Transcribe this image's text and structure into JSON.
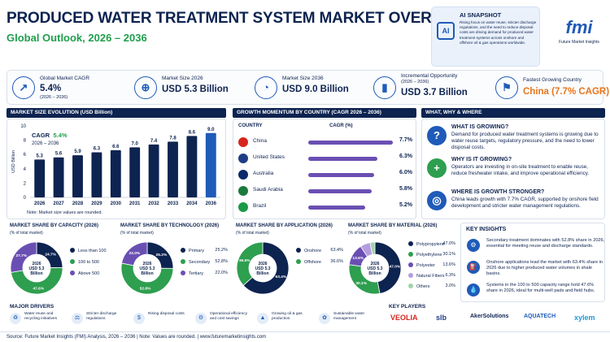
{
  "header": {
    "title": "PRODUCED WATER TREATMENT SYSTEM MARKET OVERVIEW",
    "subtitle": "Global Outlook, 2026 – 2036"
  },
  "ai_snapshot": {
    "heading": "AI SNAPSHOT",
    "icon_label": "AI",
    "text": "Rising focus on water reuse, stricter discharge regulations, and the need to reduce disposal costs are driving demand for produced water treatment systems across onshore and offshore oil & gas operations worldwide."
  },
  "logo": {
    "mark": "fmi",
    "name": "Future Market Insights"
  },
  "kpis": [
    {
      "label": "Global Market CAGR",
      "sub": "(2026 – 2036)",
      "value": "5.4%",
      "icon": "trend-up-icon"
    },
    {
      "label": "Market Size 2026",
      "sub": "",
      "value": "USD 5.3 Billion",
      "icon": "globe-icon"
    },
    {
      "label": "Market Size 2036",
      "sub": "",
      "value": "USD 9.0 Billion",
      "icon": "pie-icon"
    },
    {
      "label": "Incremental Opportunity",
      "sub": "(2026 – 2036)",
      "value": "USD 3.7 Billion",
      "icon": "bar-growth-icon"
    },
    {
      "label": "Fastest Growing Country",
      "sub": "",
      "value": "China (7.7% CAGR)",
      "icon": "flag-icon"
    }
  ],
  "evolution": {
    "heading": "MARKET SIZE EVOLUTION (USD Billion)",
    "cagr_label": "CAGR",
    "cagr_value": "5.4%",
    "cagr_period": "2026 – 2036",
    "ylabel": "USD Billion",
    "note": "Note: Market size values are rounded.",
    "y_ticks": [
      "0",
      "2",
      "4",
      "6",
      "8",
      "10"
    ]
  },
  "growth": {
    "heading": "GROWTH MOMENTUM BY COUNTRY (CAGR 2026 – 2036)",
    "col_country": "COUNTRY",
    "col_cagr": "CAGR (%)",
    "rows": [
      {
        "country": "China",
        "value": 7.7,
        "label": "7.7%",
        "flag": "#d7261e"
      },
      {
        "country": "United States",
        "value": 6.3,
        "label": "6.3%",
        "flag": "#1f3c88"
      },
      {
        "country": "Australia",
        "value": 6.0,
        "label": "6.0%",
        "flag": "#0b2b6b"
      },
      {
        "country": "Saudi Arabia",
        "value": 5.8,
        "label": "5.8%",
        "flag": "#1a7a3c"
      },
      {
        "country": "Brazil",
        "value": 5.2,
        "label": "5.2%",
        "flag": "#1a9a46"
      }
    ]
  },
  "www": {
    "heading": "WHAT, WHY & WHERE",
    "items": [
      {
        "q": "WHAT IS GROWING?",
        "a": "Demand for produced water treatment systems is growing due to water reuse targets, regulatory pressure, and the need to lower disposal costs.",
        "icon": "?"
      },
      {
        "q": "WHY IS IT GROWING?",
        "a": "Operators are investing in on-site treatment to enable reuse, reduce freshwater intake, and improve operational efficiency.",
        "icon": "+"
      },
      {
        "q": "WHERE IS GROWTH STRONGER?",
        "a": "China leads growth with 7.7% CAGR, supported by onshore field development and stricter water management regulations.",
        "icon": "◎"
      }
    ]
  },
  "shares": [
    {
      "title": "MARKET SHARE BY CAPACITY (2026)",
      "sub": "(% of total market)",
      "center": "2026",
      "center2": "USD 5.3",
      "center3": "Billion",
      "slices": [
        {
          "name": "Less than 100",
          "value": 24.7,
          "label": "24.7%",
          "color": "#0d2350"
        },
        {
          "name": "100 to 500",
          "value": 47.6,
          "label": "47.6%",
          "color": "#2e9e4f"
        },
        {
          "name": "Above 500",
          "value": 27.7,
          "label": "27.7%",
          "color": "#6a4fb3"
        }
      ],
      "show_values": false
    },
    {
      "title": "MARKET SHARE BY TECHNOLOGY (2026)",
      "sub": "(% of total market)",
      "center": "2026",
      "center2": "USD 5.3",
      "center3": "Billion",
      "slices": [
        {
          "name": "Primary",
          "value": 25.2,
          "label": "25.2%",
          "color": "#0d2350"
        },
        {
          "name": "Secondary",
          "value": 52.8,
          "label": "52.8%",
          "color": "#2e9e4f"
        },
        {
          "name": "Tertiary",
          "value": 22.0,
          "label": "22.0%",
          "color": "#6a4fb3"
        }
      ],
      "show_values": true
    },
    {
      "title": "MARKET SHARE BY APPLICATION (2026)",
      "sub": "(% of total market)",
      "center": "2026",
      "center2": "USD 5.3",
      "center3": "Billion",
      "slices": [
        {
          "name": "Onshore",
          "value": 63.4,
          "label": "63.4%",
          "color": "#0d2350"
        },
        {
          "name": "Offshore",
          "value": 36.6,
          "label": "36.6%",
          "color": "#2e9e4f"
        }
      ],
      "show_values": true
    },
    {
      "title": "MARKET SHARE BY MATERIAL (2026)",
      "sub": "(% of total market)",
      "center": "2026",
      "center2": "USD 5.3",
      "center3": "Billion",
      "slices": [
        {
          "name": "Polypropylene",
          "value": 47.0,
          "label": "47.0%",
          "color": "#0d2350"
        },
        {
          "name": "Polyethylene",
          "value": 30.1,
          "label": "30.1%",
          "color": "#2e9e4f"
        },
        {
          "name": "Polyester",
          "value": 13.6,
          "label": "13.6%",
          "color": "#6a4fb3"
        },
        {
          "name": "Natural Fibers",
          "value": 6.3,
          "label": "6.3%",
          "color": "#b59ce0"
        },
        {
          "name": "Others",
          "value": 3.0,
          "label": "3.0%",
          "color": "#9fd4a8"
        }
      ],
      "show_values": true
    }
  ],
  "insights": {
    "heading": "KEY INSIGHTS",
    "items": [
      {
        "text": "Secondary treatment dominates with 52.8% share in 2026, essential for meeting reuse and discharge standards.",
        "icon": "⚙"
      },
      {
        "text": "Onshore applications lead the market with 63.4% share in 2026 due to higher produced water volumes in shale basins.",
        "icon": "⛽"
      },
      {
        "text": "Systems in the 100 to 500 capacity range hold 47.6% share in 2026, ideal for multi-well pads and field hubs.",
        "icon": "💧"
      }
    ]
  },
  "drivers": {
    "heading": "MAJOR DRIVERS",
    "items": [
      {
        "text": "Water reuse and recycling initiatives",
        "icon": "♻"
      },
      {
        "text": "Stricter discharge regulations",
        "icon": "⚖"
      },
      {
        "text": "Rising disposal costs",
        "icon": "$"
      },
      {
        "text": "Operational efficiency and cost savings",
        "icon": "⚙"
      },
      {
        "text": "Growing oil & gas production",
        "icon": "▲"
      },
      {
        "text": "Sustainable water management",
        "icon": "✿"
      }
    ]
  },
  "players": {
    "heading": "KEY PLAYERS",
    "items": [
      {
        "name": "VEOLIA",
        "color": "#d7261e"
      },
      {
        "name": "slb",
        "color": "#1f3c88"
      },
      {
        "name": "AkerSolutions",
        "color": "#0d2350"
      },
      {
        "name": "AQUATECH",
        "color": "#1f5bb8"
      },
      {
        "name": "xylem",
        "color": "#1f9ad6"
      }
    ]
  },
  "footer": {
    "text": "Source: Future Market Insights (FMI) Analysis, 2026 – 2036 | Note: Values are rounded. | www.futuremarketinsights.com"
  },
  "chart_data": {
    "type": "bar",
    "title": "MARKET SIZE EVOLUTION (USD Billion)",
    "ylabel": "USD Billion",
    "categories": [
      "2026",
      "2027",
      "2028",
      "2029",
      "2030",
      "2031",
      "2032",
      "2033",
      "2034",
      "2036"
    ],
    "values": [
      5.3,
      5.6,
      5.9,
      6.3,
      6.6,
      7.0,
      7.4,
      7.8,
      8.6,
      9.0
    ],
    "labels": [
      "5.3",
      "5.6",
      "5.9",
      "6.3",
      "6.6",
      "7.0",
      "7.4",
      "7.8",
      "8.6",
      "9.0"
    ],
    "ylim": [
      0,
      10
    ],
    "colors": {
      "bar": "#0d2350",
      "last_bar": "#1f5bb8"
    }
  }
}
